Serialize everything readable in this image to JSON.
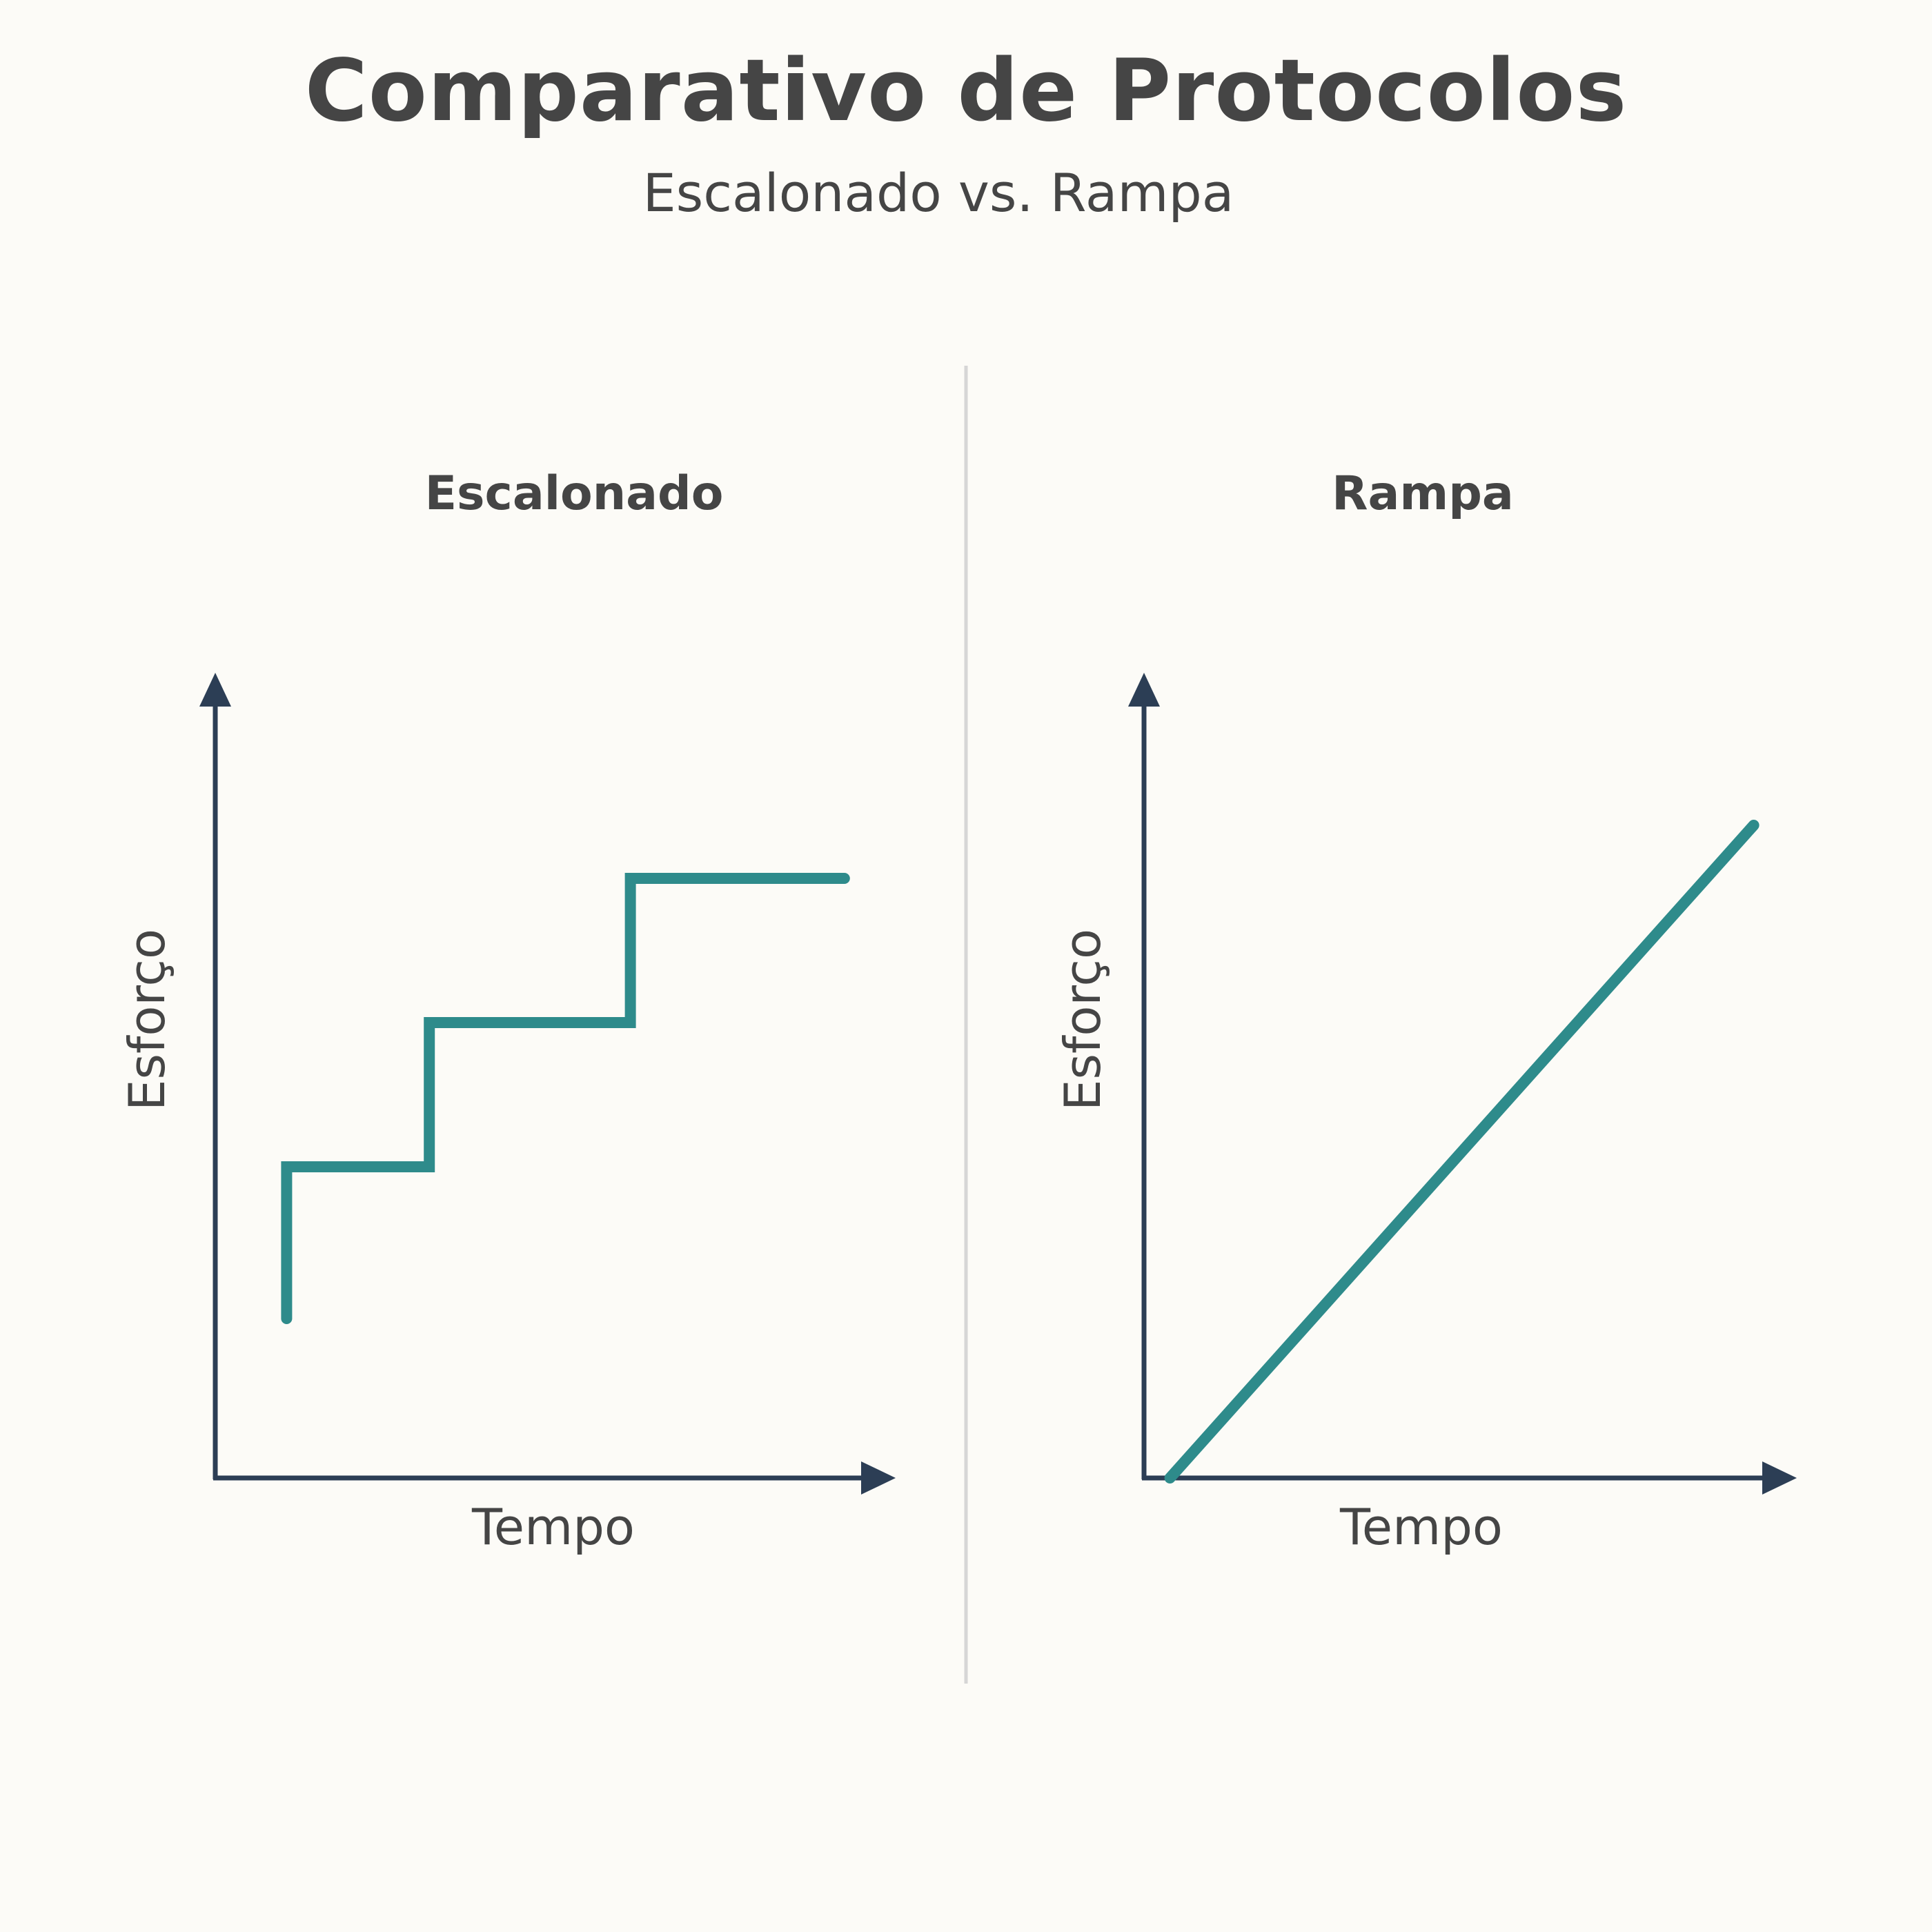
{
  "title": "Comparativo de Protocolos",
  "subtitle": "Escalonado vs. Rampa",
  "colors": {
    "background": "#fcfbf7",
    "line": "#2e8b8b",
    "axis": "#2c3e55",
    "text": "#454545",
    "divider": "#d6d6d6"
  },
  "chart_data": [
    {
      "type": "line",
      "title": "Escalonado",
      "xlabel": "Tempo",
      "ylabel": "Esforço",
      "grid": false,
      "xlim": [
        0,
        10
      ],
      "ylim": [
        0,
        10
      ],
      "series": [
        {
          "x": [
            1.1,
            1.1,
            3.3,
            3.3,
            6.4,
            6.4,
            9.7
          ],
          "y": [
            2.1,
            4.1,
            4.1,
            6.0,
            6.0,
            7.9,
            7.9
          ]
        }
      ]
    },
    {
      "type": "line",
      "title": "Rampa",
      "xlabel": "Tempo",
      "ylabel": "Esforço",
      "grid": false,
      "xlim": [
        0,
        10
      ],
      "ylim": [
        0,
        10
      ],
      "series": [
        {
          "x": [
            0.4,
            9.4
          ],
          "y": [
            0.0,
            8.6
          ]
        }
      ]
    }
  ]
}
